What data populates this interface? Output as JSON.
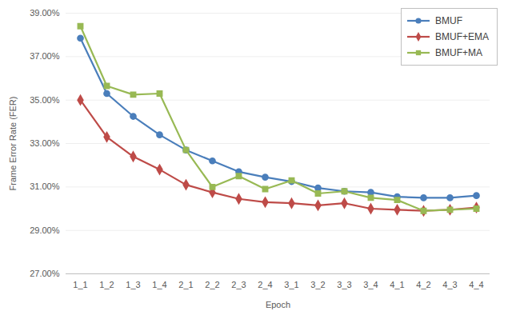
{
  "chart_data": {
    "type": "line",
    "x_label": "Epoch",
    "y_label": "Frame Error Rate (FER)",
    "categories": [
      "1_1",
      "1_2",
      "1_3",
      "1_4",
      "2_1",
      "2_2",
      "2_3",
      "2_4",
      "3_1",
      "3_2",
      "3_3",
      "3_4",
      "4_1",
      "4_2",
      "4_3",
      "4_4"
    ],
    "series": [
      {
        "name": "BMUF",
        "color": "#4a7ebb",
        "marker": "circle",
        "values": [
          37.85,
          35.3,
          34.25,
          33.4,
          32.7,
          32.2,
          31.7,
          31.45,
          31.25,
          30.95,
          30.8,
          30.75,
          30.55,
          30.5,
          30.5,
          30.6
        ]
      },
      {
        "name": "BMUF+EMA",
        "color": "#be4b48",
        "marker": "diamond",
        "values": [
          35.0,
          33.3,
          32.4,
          31.8,
          31.1,
          30.75,
          30.45,
          30.3,
          30.25,
          30.15,
          30.25,
          30.0,
          29.95,
          29.9,
          29.95,
          30.05
        ]
      },
      {
        "name": "BMUF+MA",
        "color": "#98b954",
        "marker": "square",
        "values": [
          38.4,
          35.65,
          35.25,
          35.3,
          32.7,
          31.0,
          31.5,
          30.9,
          31.3,
          30.7,
          30.8,
          30.5,
          30.4,
          29.9,
          29.95,
          30.0
        ]
      }
    ],
    "ylim": [
      27,
      39
    ],
    "yticks": [
      {
        "value": 27,
        "label": "27.00%"
      },
      {
        "value": 29,
        "label": "29.00%"
      },
      {
        "value": 31,
        "label": "31.00%"
      },
      {
        "value": 33,
        "label": "33.00%"
      },
      {
        "value": 35,
        "label": "35.00%"
      },
      {
        "value": 37,
        "label": "37.00%"
      },
      {
        "value": 39,
        "label": "39.00%"
      }
    ],
    "grid": true,
    "legend": "top-right"
  }
}
